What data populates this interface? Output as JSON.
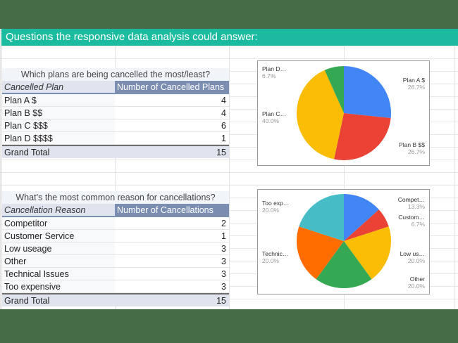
{
  "banner": {
    "title": "Questions the responsive data analysis could answer:"
  },
  "colors": {
    "banner": "#1bbb9f",
    "frame": "#456b47",
    "header_dark": "#7b8eb1",
    "header_light": "#dfe4ee"
  },
  "plans_table": {
    "caption": "Which plans are being cancelled the most/least?",
    "col1_header": "Cancelled Plan",
    "col2_header": "Number of Cancelled Plans",
    "rows": [
      {
        "label": "Plan A $",
        "value": "4"
      },
      {
        "label": "Plan B $$",
        "value": "4"
      },
      {
        "label": "Plan C $$$",
        "value": "6"
      },
      {
        "label": "Plan D $$$$",
        "value": "1"
      }
    ],
    "total_label": "Grand Total",
    "total_value": "15"
  },
  "reasons_table": {
    "caption": "What’s the most common reason for cancellations?",
    "col1_header": "Cancellation Reason",
    "col2_header": "Number of Cancellations",
    "rows": [
      {
        "label": "Competitor",
        "value": "2"
      },
      {
        "label": "Customer Service",
        "value": "1"
      },
      {
        "label": "Low useage",
        "value": "3"
      },
      {
        "label": "Other",
        "value": "3"
      },
      {
        "label": "Technical Issues",
        "value": "3"
      },
      {
        "label": "Too expensive",
        "value": "3"
      }
    ],
    "total_label": "Grand Total",
    "total_value": "15"
  },
  "chart_data": [
    {
      "type": "pie",
      "title": "",
      "categories": [
        "Plan A $",
        "Plan B $$",
        "Plan C $$$",
        "Plan D $$$$"
      ],
      "values": [
        4,
        4,
        6,
        1
      ],
      "percentages": [
        "26.7%",
        "26.7%",
        "40.0%",
        "6.7%"
      ],
      "colors": [
        "#4285f4",
        "#ea4335",
        "#fbbc04",
        "#34a853"
      ],
      "slice_labels": [
        {
          "name": "Plan A $",
          "pct": "26.7%"
        },
        {
          "name": "Plan B $$",
          "pct": "26.7%"
        },
        {
          "name": "Plan C…",
          "pct": "40.0%"
        },
        {
          "name": "Plan D…",
          "pct": "6.7%"
        }
      ],
      "legend": "none (callout labels)"
    },
    {
      "type": "pie",
      "title": "",
      "categories": [
        "Competitor",
        "Customer Service",
        "Low useage",
        "Other",
        "Technical Issues",
        "Too expensive"
      ],
      "values": [
        2,
        1,
        3,
        3,
        3,
        3
      ],
      "percentages": [
        "13.3%",
        "6.7%",
        "20.0%",
        "20.0%",
        "20.0%",
        "20.0%"
      ],
      "colors": [
        "#4285f4",
        "#ea4335",
        "#fbbc04",
        "#34a853",
        "#ff6d01",
        "#46bdc6"
      ],
      "slice_labels": [
        {
          "name": "Compet…",
          "pct": "13.3%"
        },
        {
          "name": "Custom…",
          "pct": "6.7%"
        },
        {
          "name": "Low us…",
          "pct": "20.0%"
        },
        {
          "name": "Other",
          "pct": "20.0%"
        },
        {
          "name": "Technic…",
          "pct": "20.0%"
        },
        {
          "name": "Too exp…",
          "pct": "20.0%"
        }
      ],
      "legend": "none (callout labels)"
    }
  ]
}
